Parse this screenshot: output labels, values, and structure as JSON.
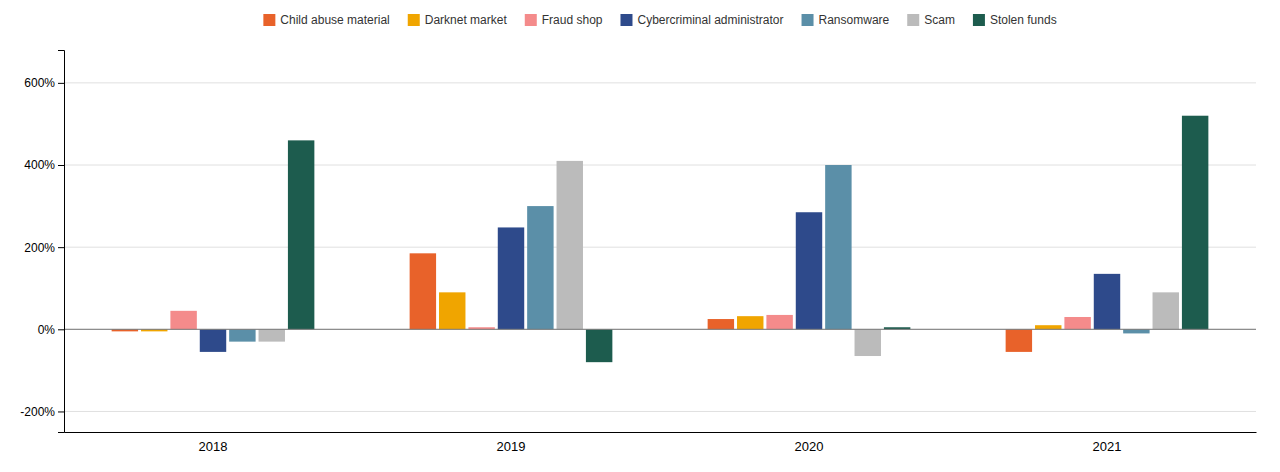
{
  "chart_data": {
    "type": "bar",
    "categories": [
      "2018",
      "2019",
      "2020",
      "2021"
    ],
    "series": [
      {
        "name": "Child abuse material",
        "color": "#E8622A",
        "values": [
          -5,
          185,
          25,
          -55
        ]
      },
      {
        "name": "Darknet market",
        "color": "#F0A500",
        "values": [
          -5,
          90,
          32,
          10
        ]
      },
      {
        "name": "Fraud shop",
        "color": "#F48B8B",
        "values": [
          45,
          5,
          35,
          30
        ]
      },
      {
        "name": "Cybercriminal administrator",
        "color": "#2E4A8B",
        "values": [
          -55,
          248,
          285,
          135
        ]
      },
      {
        "name": "Ransomware",
        "color": "#5B8FA8",
        "values": [
          -30,
          300,
          400,
          -10
        ]
      },
      {
        "name": "Scam",
        "color": "#BBBBBB",
        "values": [
          -30,
          410,
          -65,
          90
        ]
      },
      {
        "name": "Stolen funds",
        "color": "#1D5C4E",
        "values": [
          460,
          -80,
          5,
          520
        ]
      }
    ],
    "ylim": [
      -250,
      680
    ],
    "yticks": [
      {
        "value": -200,
        "label": "-200%"
      },
      {
        "value": 0,
        "label": "0%"
      },
      {
        "value": 200,
        "label": "200%"
      },
      {
        "value": 400,
        "label": "400%"
      },
      {
        "value": 600,
        "label": "600%"
      }
    ],
    "grid": true,
    "legend": "top"
  }
}
